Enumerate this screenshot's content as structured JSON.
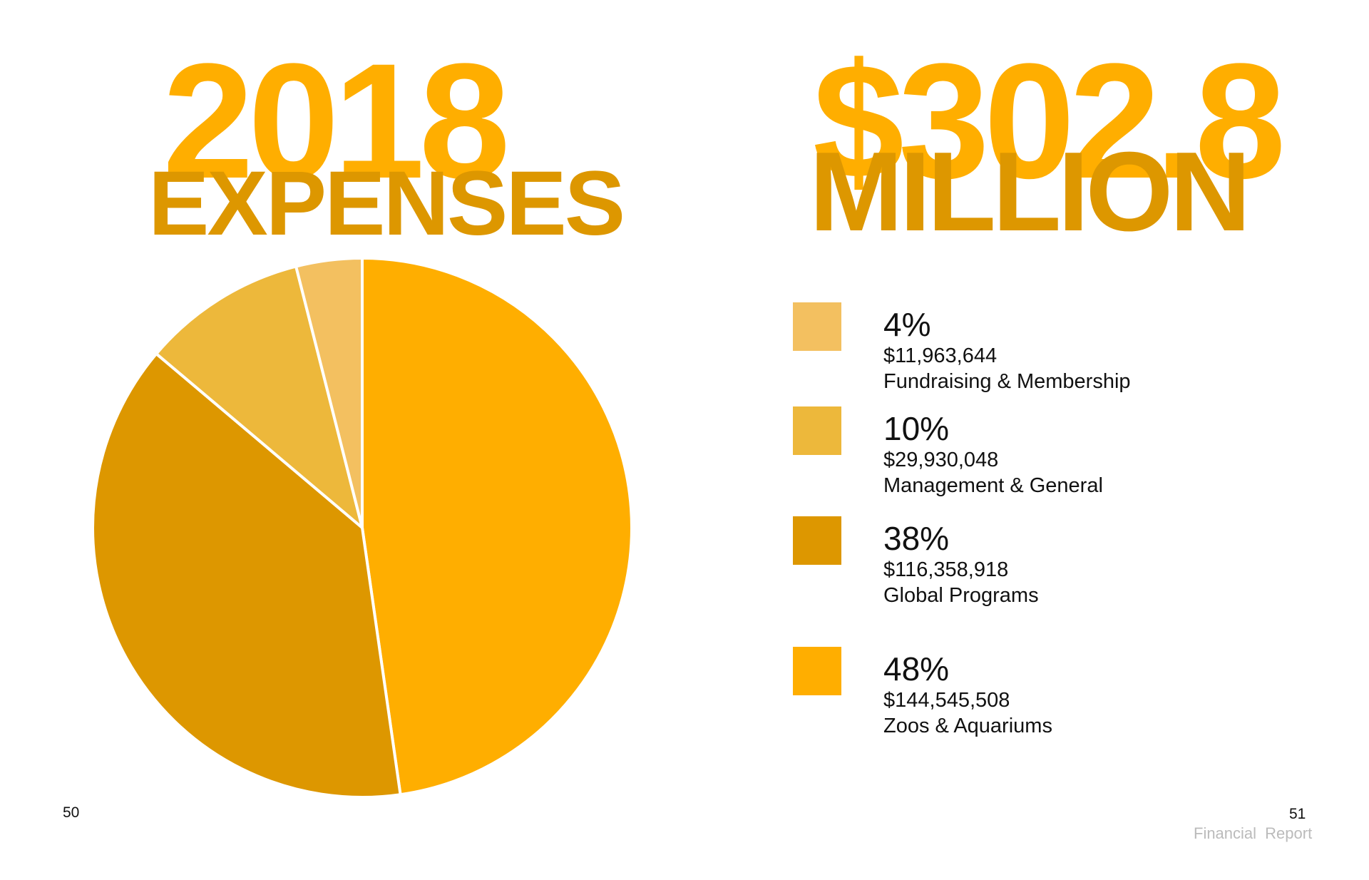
{
  "header": {
    "year": "2018",
    "expenses_label": "EXPENSES",
    "total_amount": "$302.8",
    "million_label": "MILLION"
  },
  "colors": {
    "fundraising": "#F3C060",
    "management": "#EDB83B",
    "global": "#DD9700",
    "zoos": "#FFAE00",
    "title_light": "#FFAE00",
    "title_dark": "#DD9700"
  },
  "legend": [
    {
      "percent": "4%",
      "amount": "$11,963,644",
      "label": "Fundraising & Membership",
      "color": "#F3C060"
    },
    {
      "percent": "10%",
      "amount": "$29,930,048",
      "label": "Management & General",
      "color": "#EDB83B"
    },
    {
      "percent": "38%",
      "amount": "$116,358,918",
      "label": "Global Programs",
      "color": "#DD9700"
    },
    {
      "percent": "48%",
      "amount": "$144,545,508",
      "label": "Zoos & Aquariums",
      "color": "#FFAE00"
    }
  ],
  "chart_data": {
    "type": "pie",
    "title": "2018 EXPENSES",
    "categories": [
      "Zoos & Aquariums",
      "Global Programs",
      "Management & General",
      "Fundraising & Membership"
    ],
    "values": [
      144545508,
      116358918,
      29930048,
      11963644
    ],
    "percents": [
      48,
      38,
      10,
      4
    ],
    "colors": [
      "#FFAE00",
      "#DD9700",
      "#EDB83B",
      "#F3C060"
    ],
    "start": "12 o'clock",
    "direction": "clockwise",
    "legend": "right"
  },
  "footer": {
    "page_left": "50",
    "page_right": "51",
    "report_label": "Financial Report"
  }
}
